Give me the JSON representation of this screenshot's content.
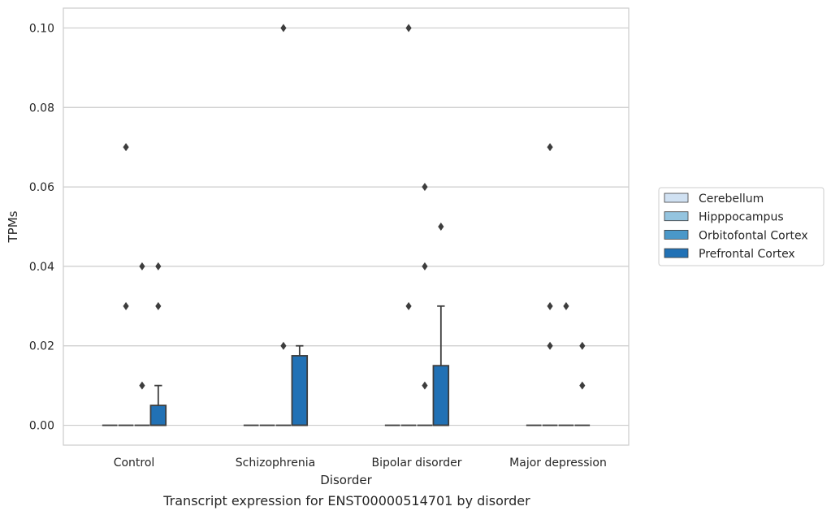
{
  "chart_data": {
    "type": "box",
    "caption": "Transcript expression for ENST00000514701 by disorder",
    "xlabel": "Disorder",
    "ylabel": "TPMs",
    "ylim": [
      -0.005,
      0.105
    ],
    "yticks": [
      0.0,
      0.02,
      0.04,
      0.06,
      0.08,
      0.1
    ],
    "ytick_labels": [
      "0.00",
      "0.02",
      "0.04",
      "0.06",
      "0.08",
      "0.10"
    ],
    "categories": [
      "Control",
      "Schizophrenia",
      "Bipolar disorder",
      "Major depression"
    ],
    "grid": "y",
    "legend_position": "right",
    "series": [
      {
        "name": "Cerebellum",
        "color": "#d0e1f2",
        "boxes": [
          {
            "q1": 0,
            "median": 0,
            "q3": 0,
            "whisker_low": 0,
            "whisker_high": 0,
            "outliers": []
          },
          {
            "q1": 0,
            "median": 0,
            "q3": 0,
            "whisker_low": 0,
            "whisker_high": 0,
            "outliers": []
          },
          {
            "q1": 0,
            "median": 0,
            "q3": 0,
            "whisker_low": 0,
            "whisker_high": 0,
            "outliers": []
          },
          {
            "q1": 0,
            "median": 0,
            "q3": 0,
            "whisker_low": 0,
            "whisker_high": 0,
            "outliers": []
          }
        ]
      },
      {
        "name": "Hipppocampus",
        "color": "#94c4df",
        "boxes": [
          {
            "q1": 0,
            "median": 0,
            "q3": 0,
            "whisker_low": 0,
            "whisker_high": 0,
            "outliers": [
              0.07,
              0.03
            ]
          },
          {
            "q1": 0,
            "median": 0,
            "q3": 0,
            "whisker_low": 0,
            "whisker_high": 0,
            "outliers": []
          },
          {
            "q1": 0,
            "median": 0,
            "q3": 0,
            "whisker_low": 0,
            "whisker_high": 0,
            "outliers": [
              0.1,
              0.03
            ]
          },
          {
            "q1": 0,
            "median": 0,
            "q3": 0,
            "whisker_low": 0,
            "whisker_high": 0,
            "outliers": [
              0.07,
              0.03,
              0.02
            ]
          }
        ]
      },
      {
        "name": "Orbitofontal Cortex",
        "color": "#4a98c9",
        "boxes": [
          {
            "q1": 0,
            "median": 0,
            "q3": 0,
            "whisker_low": 0,
            "whisker_high": 0,
            "outliers": [
              0.04,
              0.01
            ]
          },
          {
            "q1": 0,
            "median": 0,
            "q3": 0,
            "whisker_low": 0,
            "whisker_high": 0,
            "outliers": [
              0.1,
              0.02
            ]
          },
          {
            "q1": 0,
            "median": 0,
            "q3": 0,
            "whisker_low": 0,
            "whisker_high": 0,
            "outliers": [
              0.06,
              0.04,
              0.01
            ]
          },
          {
            "q1": 0,
            "median": 0,
            "q3": 0,
            "whisker_low": 0,
            "whisker_high": 0,
            "outliers": [
              0.03
            ]
          }
        ]
      },
      {
        "name": "Prefrontal Cortex",
        "color": "#2171b5",
        "boxes": [
          {
            "q1": 0,
            "median": 0,
            "q3": 0.005,
            "whisker_low": 0,
            "whisker_high": 0.01,
            "outliers": [
              0.04,
              0.03
            ]
          },
          {
            "q1": 0,
            "median": 0,
            "q3": 0.0175,
            "whisker_low": 0,
            "whisker_high": 0.02,
            "outliers": []
          },
          {
            "q1": 0,
            "median": 0,
            "q3": 0.015,
            "whisker_low": 0,
            "whisker_high": 0.03,
            "outliers": [
              0.05
            ]
          },
          {
            "q1": 0,
            "median": 0,
            "q3": 0,
            "whisker_low": 0,
            "whisker_high": 0,
            "outliers": [
              0.02,
              0.01
            ]
          }
        ]
      }
    ]
  }
}
